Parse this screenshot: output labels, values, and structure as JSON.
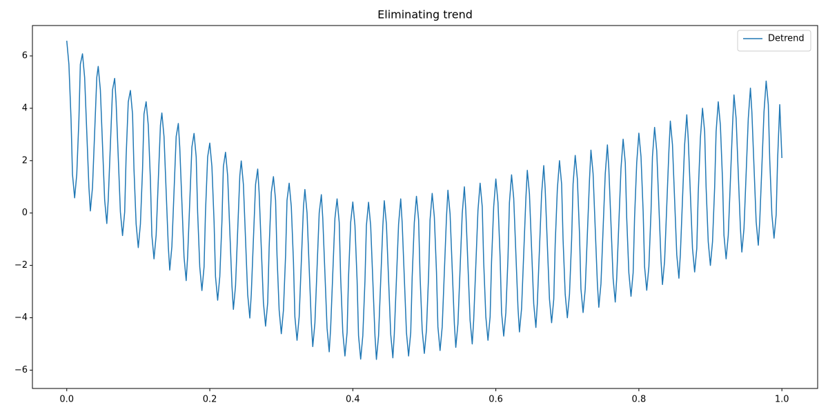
{
  "chart_data": {
    "type": "line",
    "title": "Eliminating trend",
    "x": [
      0,
      0.003,
      0.006,
      0.008,
      0.011,
      0.014,
      0.017,
      0.019,
      0.022,
      0.025,
      0.028,
      0.031,
      0.033,
      0.036,
      0.039,
      0.042,
      0.044,
      0.047,
      0.05,
      0.053,
      0.056,
      0.058,
      0.061,
      0.064,
      0.067,
      0.069,
      0.072,
      0.075,
      0.078,
      0.081,
      0.083,
      0.086,
      0.089,
      0.092,
      0.094,
      0.097,
      0.1,
      0.103,
      0.106,
      0.108,
      0.111,
      0.114,
      0.117,
      0.119,
      0.122,
      0.125,
      0.128,
      0.131,
      0.133,
      0.136,
      0.139,
      0.142,
      0.144,
      0.147,
      0.15,
      0.153,
      0.156,
      0.158,
      0.161,
      0.164,
      0.167,
      0.169,
      0.172,
      0.175,
      0.178,
      0.181,
      0.183,
      0.186,
      0.189,
      0.192,
      0.194,
      0.197,
      0.2,
      0.203,
      0.206,
      0.208,
      0.211,
      0.214,
      0.217,
      0.219,
      0.222,
      0.225,
      0.228,
      0.231,
      0.233,
      0.236,
      0.239,
      0.242,
      0.244,
      0.247,
      0.25,
      0.253,
      0.256,
      0.258,
      0.261,
      0.264,
      0.267,
      0.269,
      0.272,
      0.275,
      0.278,
      0.281,
      0.283,
      0.286,
      0.289,
      0.292,
      0.294,
      0.297,
      0.3,
      0.303,
      0.306,
      0.308,
      0.311,
      0.314,
      0.317,
      0.319,
      0.322,
      0.325,
      0.328,
      0.331,
      0.333,
      0.336,
      0.339,
      0.342,
      0.344,
      0.347,
      0.35,
      0.353,
      0.356,
      0.358,
      0.361,
      0.364,
      0.367,
      0.369,
      0.372,
      0.375,
      0.378,
      0.381,
      0.383,
      0.386,
      0.389,
      0.392,
      0.394,
      0.397,
      0.4,
      0.403,
      0.406,
      0.408,
      0.411,
      0.414,
      0.417,
      0.419,
      0.422,
      0.425,
      0.428,
      0.431,
      0.433,
      0.436,
      0.439,
      0.442,
      0.444,
      0.447,
      0.45,
      0.453,
      0.456,
      0.458,
      0.461,
      0.464,
      0.467,
      0.469,
      0.472,
      0.475,
      0.478,
      0.481,
      0.483,
      0.486,
      0.489,
      0.492,
      0.494,
      0.497,
      0.5,
      0.503,
      0.506,
      0.508,
      0.511,
      0.514,
      0.517,
      0.519,
      0.522,
      0.525,
      0.528,
      0.531,
      0.533,
      0.536,
      0.539,
      0.542,
      0.544,
      0.547,
      0.55,
      0.553,
      0.556,
      0.558,
      0.561,
      0.564,
      0.567,
      0.569,
      0.572,
      0.575,
      0.578,
      0.581,
      0.583,
      0.586,
      0.589,
      0.592,
      0.594,
      0.597,
      0.6,
      0.603,
      0.606,
      0.608,
      0.611,
      0.614,
      0.617,
      0.619,
      0.622,
      0.625,
      0.628,
      0.631,
      0.633,
      0.636,
      0.639,
      0.642,
      0.644,
      0.647,
      0.65,
      0.653,
      0.656,
      0.658,
      0.661,
      0.664,
      0.667,
      0.669,
      0.672,
      0.675,
      0.678,
      0.681,
      0.683,
      0.686,
      0.689,
      0.692,
      0.694,
      0.697,
      0.7,
      0.703,
      0.706,
      0.708,
      0.711,
      0.714,
      0.717,
      0.719,
      0.722,
      0.725,
      0.728,
      0.731,
      0.733,
      0.736,
      0.739,
      0.742,
      0.744,
      0.747,
      0.75,
      0.753,
      0.756,
      0.758,
      0.761,
      0.764,
      0.767,
      0.769,
      0.772,
      0.775,
      0.778,
      0.781,
      0.783,
      0.786,
      0.789,
      0.792,
      0.794,
      0.797,
      0.8,
      0.803,
      0.806,
      0.808,
      0.811,
      0.814,
      0.817,
      0.819,
      0.822,
      0.825,
      0.828,
      0.831,
      0.833,
      0.836,
      0.839,
      0.842,
      0.844,
      0.847,
      0.85,
      0.853,
      0.856,
      0.858,
      0.861,
      0.864,
      0.867,
      0.869,
      0.872,
      0.875,
      0.878,
      0.881,
      0.883,
      0.886,
      0.889,
      0.892,
      0.894,
      0.897,
      0.9,
      0.903,
      0.906,
      0.908,
      0.911,
      0.914,
      0.917,
      0.919,
      0.922,
      0.925,
      0.928,
      0.931,
      0.933,
      0.936,
      0.939,
      0.942,
      0.944,
      0.947,
      0.95,
      0.953,
      0.956,
      0.958,
      0.961,
      0.964,
      0.967,
      0.969,
      0.972,
      0.975,
      0.978,
      0.981,
      0.983,
      0.986,
      0.989,
      0.992,
      0.994,
      0.997,
      1
    ],
    "series": [
      {
        "name": "Detrend",
        "color": "#1f77b4",
        "values": [
          6.58,
          5.68,
          3.58,
          1.48,
          0.58,
          1.48,
          3.58,
          5.68,
          6.08,
          5.18,
          3.08,
          0.98,
          0.08,
          0.98,
          3.08,
          5.18,
          5.6,
          4.7,
          2.6,
          0.5,
          -0.4,
          0.5,
          2.6,
          4.7,
          5.14,
          4.24,
          2.14,
          0.04,
          -0.86,
          0.04,
          2.14,
          4.24,
          4.68,
          3.78,
          1.68,
          -0.42,
          -1.32,
          -0.42,
          1.68,
          3.78,
          4.25,
          3.35,
          1.25,
          -0.85,
          -1.75,
          -0.85,
          1.25,
          3.35,
          3.82,
          2.92,
          0.82,
          -1.28,
          -2.18,
          -1.28,
          0.82,
          2.92,
          3.42,
          2.52,
          0.42,
          -1.68,
          -2.58,
          -1.68,
          0.42,
          2.52,
          3.04,
          2.14,
          0.04,
          -2.06,
          -2.96,
          -2.06,
          0.04,
          2.14,
          2.67,
          1.77,
          -0.33,
          -2.43,
          -3.33,
          -2.43,
          -0.33,
          1.77,
          2.32,
          1.42,
          -0.68,
          -2.78,
          -3.68,
          -2.78,
          -0.68,
          1.42,
          1.99,
          1.09,
          -1.01,
          -3.11,
          -4.01,
          -3.11,
          -1.01,
          1.09,
          1.68,
          0.78,
          -1.32,
          -3.42,
          -4.32,
          -3.42,
          -1.32,
          0.78,
          1.39,
          0.49,
          -1.61,
          -3.71,
          -4.61,
          -3.71,
          -1.61,
          0.49,
          1.14,
          0.24,
          -1.86,
          -3.96,
          -4.86,
          -3.96,
          -1.86,
          0.24,
          0.9,
          0,
          -2.1,
          -4.2,
          -5.1,
          -4.2,
          -2.1,
          0,
          0.7,
          -0.2,
          -2.3,
          -4.4,
          -5.3,
          -4.4,
          -2.3,
          -0.2,
          0.54,
          -0.36,
          -2.46,
          -4.56,
          -5.46,
          -4.56,
          -2.46,
          -0.36,
          0.42,
          -0.48,
          -2.58,
          -4.68,
          -5.58,
          -4.68,
          -2.58,
          -0.48,
          0.41,
          -0.49,
          -2.59,
          -4.69,
          -5.59,
          -4.69,
          -2.59,
          -0.49,
          0.47,
          -0.43,
          -2.53,
          -4.63,
          -5.53,
          -4.63,
          -2.53,
          -0.43,
          0.54,
          -0.36,
          -2.46,
          -4.56,
          -5.46,
          -4.56,
          -2.46,
          -0.36,
          0.64,
          -0.26,
          -2.36,
          -4.46,
          -5.36,
          -4.46,
          -2.36,
          -0.26,
          0.75,
          -0.15,
          -2.25,
          -4.35,
          -5.25,
          -4.35,
          -2.25,
          -0.15,
          0.87,
          -0.03,
          -2.13,
          -4.23,
          -5.13,
          -4.23,
          -2.13,
          -0.03,
          1,
          0.1,
          -2,
          -4.1,
          -5,
          -4.1,
          -2,
          0.1,
          1.14,
          0.24,
          -1.86,
          -3.96,
          -4.86,
          -3.96,
          -1.86,
          0.24,
          1.3,
          0.4,
          -1.7,
          -3.8,
          -4.7,
          -3.8,
          -1.7,
          0.4,
          1.46,
          0.56,
          -1.54,
          -3.64,
          -4.54,
          -3.64,
          -1.54,
          0.56,
          1.63,
          0.73,
          -1.37,
          -3.47,
          -4.37,
          -3.47,
          -1.37,
          0.73,
          1.81,
          0.91,
          -1.19,
          -3.29,
          -4.19,
          -3.29,
          -1.19,
          0.91,
          2,
          1.1,
          -1,
          -3.1,
          -4,
          -3.1,
          -1,
          1.1,
          2.2,
          1.3,
          -0.8,
          -2.9,
          -3.8,
          -2.9,
          -0.8,
          1.3,
          2.4,
          1.5,
          -0.6,
          -2.7,
          -3.6,
          -2.7,
          -0.6,
          1.5,
          2.6,
          1.7,
          -0.4,
          -2.5,
          -3.4,
          -2.5,
          -0.4,
          1.7,
          2.82,
          1.92,
          -0.18,
          -2.28,
          -3.18,
          -2.28,
          -0.18,
          1.92,
          3.05,
          2.15,
          0.05,
          -2.05,
          -2.95,
          -2.05,
          0.05,
          2.15,
          3.27,
          2.37,
          0.27,
          -1.83,
          -2.73,
          -1.83,
          0.27,
          2.37,
          3.51,
          2.61,
          0.51,
          -1.59,
          -2.49,
          -1.59,
          0.51,
          2.61,
          3.75,
          2.85,
          0.75,
          -1.35,
          -2.25,
          -1.35,
          0.75,
          2.85,
          4,
          3.1,
          1,
          -1.1,
          -2,
          -1.1,
          1,
          3.1,
          4.25,
          3.35,
          1.25,
          -0.85,
          -1.75,
          -0.85,
          1.25,
          3.35,
          4.51,
          3.61,
          1.51,
          -0.59,
          -1.49,
          -0.59,
          1.51,
          3.61,
          4.77,
          3.87,
          1.77,
          -0.33,
          -1.23,
          -0.33,
          1.77,
          3.87,
          5.04,
          4.14,
          2.04,
          -0.06,
          -0.96,
          -0.06,
          2.04,
          4.14,
          2.1
        ]
      }
    ],
    "xlim": [
      -0.048,
      1.05
    ],
    "ylim": [
      -6.7,
      7.16
    ],
    "xticks": [
      {
        "value": 0,
        "label": "0.0"
      },
      {
        "value": 0.2,
        "label": "0.2"
      },
      {
        "value": 0.4,
        "label": "0.4"
      },
      {
        "value": 0.6,
        "label": "0.6"
      },
      {
        "value": 0.8,
        "label": "0.8"
      },
      {
        "value": 1,
        "label": "1.0"
      }
    ],
    "yticks": [
      {
        "value": -6,
        "label": "−6"
      },
      {
        "value": -4,
        "label": "−4"
      },
      {
        "value": -2,
        "label": "−2"
      },
      0,
      2,
      4,
      6
    ],
    "grid": false,
    "legend": "upper right"
  }
}
